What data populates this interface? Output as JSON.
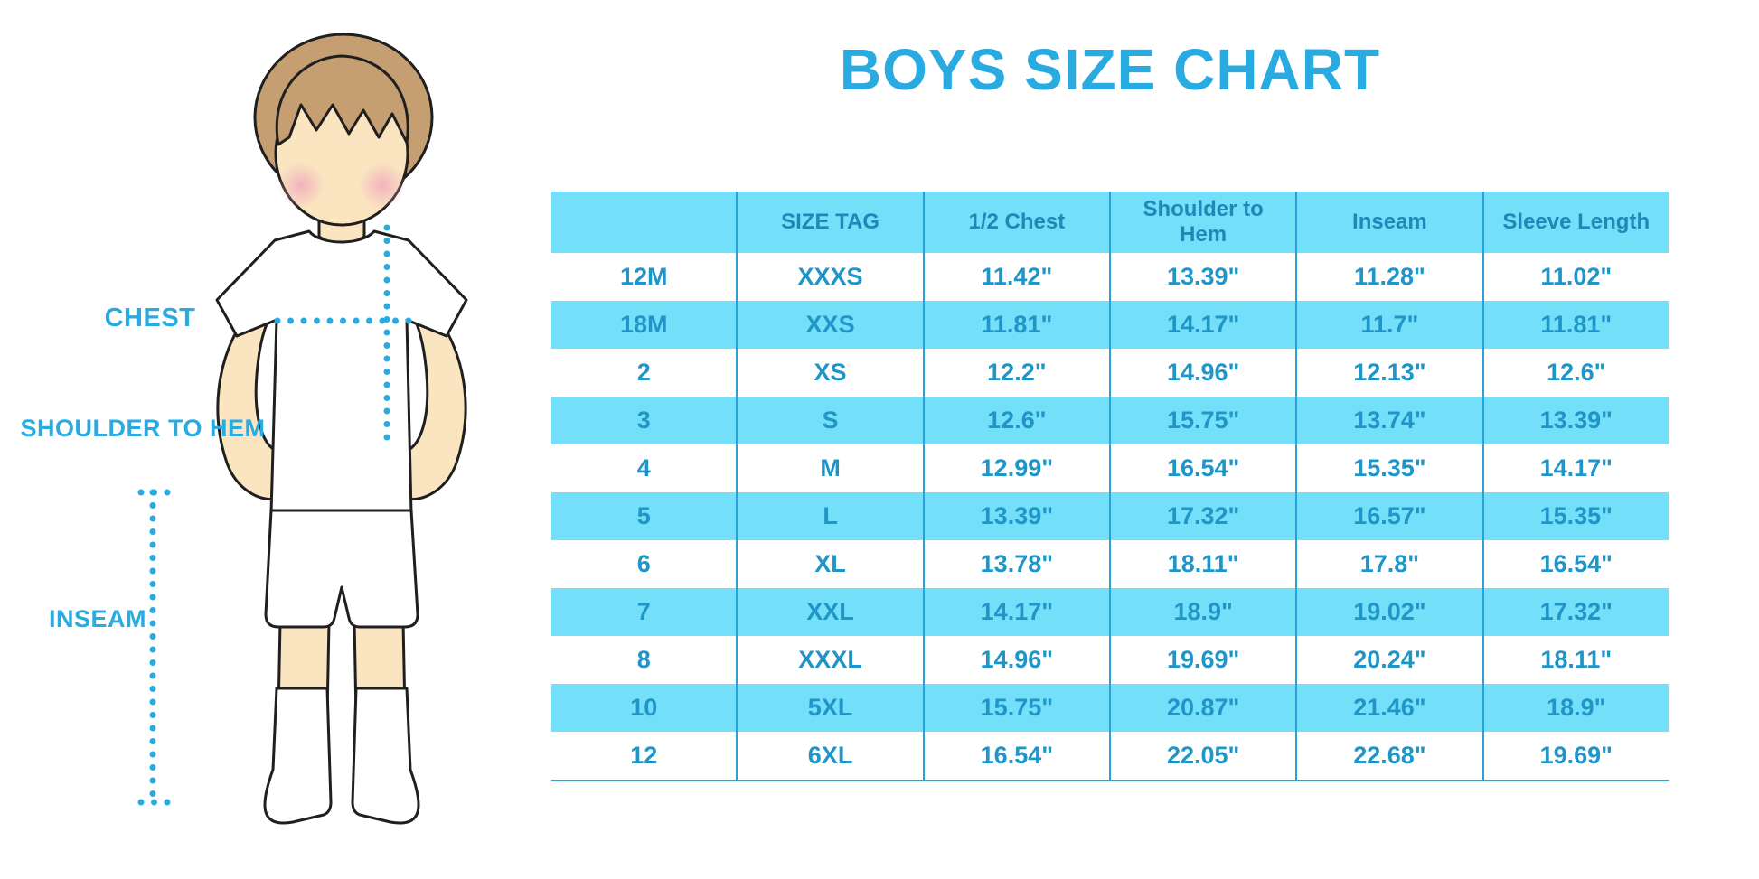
{
  "title": "BOYS SIZE CHART",
  "diagram": {
    "chest_label": "CHEST",
    "shoulder_to_hem_label": "SHOULDER TO HEM",
    "inseam_label": "INSEAM",
    "figure": "boy-in-white-tee-and-shorts-illustration"
  },
  "colors": {
    "accent_blue": "#29ABE2",
    "table_header_text": "#1E89B8",
    "table_cell_text": "#2095C8",
    "stripe_background": "#74DFF8",
    "divider_blue": "#2AA2D8",
    "skin": "#FAE5C0",
    "hair": "#C59E72",
    "blush": "#F2A9BE",
    "outline": "#1F1F1F"
  },
  "chart_data": {
    "type": "table",
    "title": "BOYS SIZE CHART",
    "columns": [
      "",
      "SIZE TAG",
      "1/2 Chest",
      "Shoulder to Hem",
      "Inseam",
      "Sleeve Length"
    ],
    "rows": [
      [
        "12M",
        "XXXS",
        "11.42\"",
        "13.39\"",
        "11.28\"",
        "11.02\""
      ],
      [
        "18M",
        "XXS",
        "11.81\"",
        "14.17\"",
        "11.7\"",
        "11.81\""
      ],
      [
        "2",
        "XS",
        "12.2\"",
        "14.96\"",
        "12.13\"",
        "12.6\""
      ],
      [
        "3",
        "S",
        "12.6\"",
        "15.75\"",
        "13.74\"",
        "13.39\""
      ],
      [
        "4",
        "M",
        "12.99\"",
        "16.54\"",
        "15.35\"",
        "14.17\""
      ],
      [
        "5",
        "L",
        "13.39\"",
        "17.32\"",
        "16.57\"",
        "15.35\""
      ],
      [
        "6",
        "XL",
        "13.78\"",
        "18.11\"",
        "17.8\"",
        "16.54\""
      ],
      [
        "7",
        "XXL",
        "14.17\"",
        "18.9\"",
        "19.02\"",
        "17.32\""
      ],
      [
        "8",
        "XXXL",
        "14.96\"",
        "19.69\"",
        "20.24\"",
        "18.11\""
      ],
      [
        "10",
        "5XL",
        "15.75\"",
        "20.87\"",
        "21.46\"",
        "18.9\""
      ],
      [
        "12",
        "6XL",
        "16.54\"",
        "22.05\"",
        "22.68\"",
        "19.69\""
      ]
    ]
  }
}
